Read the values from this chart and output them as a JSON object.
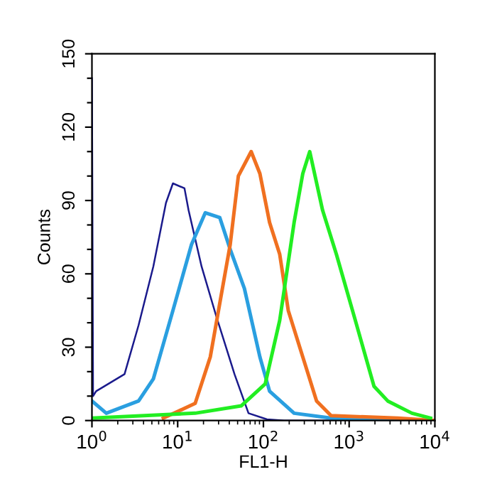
{
  "chart_data": {
    "type": "line",
    "xlabel": "FL1-H",
    "ylabel": "Counts",
    "log": "x",
    "xlim": [
      1,
      10000
    ],
    "ylim": [
      0,
      150
    ],
    "xticks": [
      {
        "value": 1,
        "label": "10$^{0}$"
      },
      {
        "value": 10,
        "label": "10$^{1}$"
      },
      {
        "value": 100,
        "label": "10$^{2}$"
      },
      {
        "value": 1000,
        "label": "10$^{3}$"
      },
      {
        "value": 10000,
        "label": "10$^{4}$"
      }
    ],
    "yticks": [
      0,
      {
        "value": 10,
        "label": null
      },
      {
        "value": 20,
        "label": null
      },
      30,
      {
        "value": 40,
        "label": null
      },
      {
        "value": 50,
        "label": null
      },
      60,
      {
        "value": 70,
        "label": null
      },
      {
        "value": 80,
        "label": null
      },
      90,
      {
        "value": 100,
        "label": null
      },
      {
        "value": 110,
        "label": null
      },
      120,
      {
        "value": 130,
        "label": null
      },
      {
        "value": 140,
        "label": null
      },
      150
    ],
    "grid": false,
    "legend": false,
    "marker": "none",
    "line_style": "solid",
    "series": [
      {
        "color": "#1a1a8c",
        "x": [
          1,
          1.03,
          1.12,
          2.4,
          3.5,
          5.2,
          7.3,
          8.8,
          12,
          13.4,
          19,
          28,
          46,
          67,
          110,
          174,
          10000
        ],
        "values": [
          140,
          10,
          12,
          19,
          39,
          63,
          89,
          97,
          95,
          86,
          63,
          43,
          19,
          3,
          0.5,
          0,
          0
        ]
      },
      {
        "color": "#2a9fe0",
        "x": [
          1,
          1.47,
          3.5,
          5.2,
          8.8,
          14.5,
          21,
          31,
          41,
          60,
          91,
          118,
          228,
          615,
          10000
        ],
        "values": [
          8,
          3,
          8,
          17,
          45,
          72,
          85,
          83,
          70,
          54,
          26,
          12,
          3,
          1,
          0
        ]
      },
      {
        "color": "#f07020",
        "x": [
          6.8,
          16,
          24,
          31,
          41,
          51,
          72,
          91,
          118,
          155,
          195,
          288,
          417,
          615,
          3700,
          10000
        ],
        "values": [
          1,
          7,
          26,
          48,
          72,
          100,
          110,
          101,
          81,
          68,
          45,
          26,
          8,
          2,
          1,
          0
        ]
      },
      {
        "color": "#22ee22",
        "x": [
          1,
          16,
          55,
          105,
          155,
          228,
          288,
          347,
          490,
          710,
          1180,
          1950,
          2820,
          5400,
          8900
        ],
        "values": [
          1,
          3,
          6,
          15,
          41,
          81,
          101,
          110,
          86,
          68,
          41,
          14,
          8,
          3,
          1
        ]
      }
    ]
  }
}
